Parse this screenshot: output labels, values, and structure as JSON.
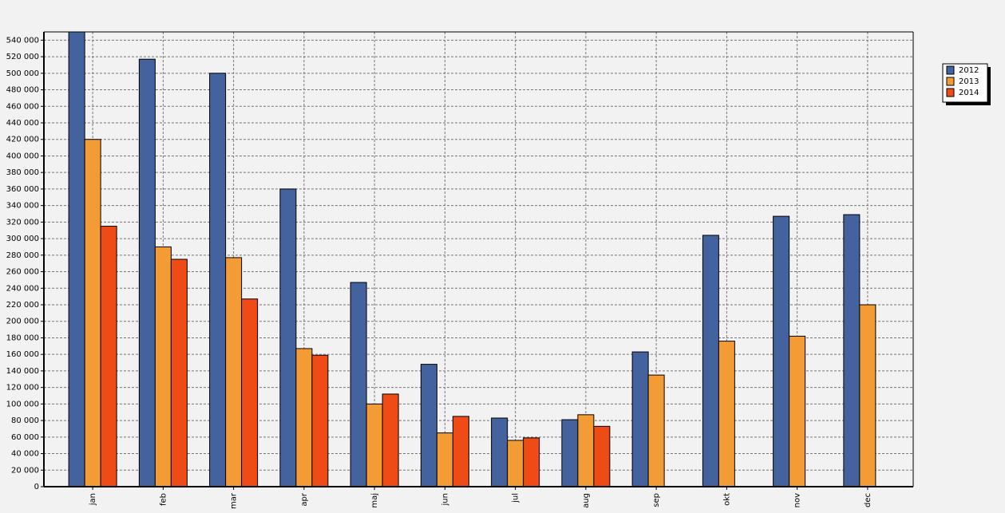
{
  "chart_data": {
    "type": "bar",
    "categories": [
      "jan",
      "feb",
      "mar",
      "apr",
      "maj",
      "jun",
      "jul",
      "aug",
      "sep",
      "okt",
      "nov",
      "dec"
    ],
    "series": [
      {
        "name": "2012",
        "color": "#43629e",
        "values": [
          550000,
          517000,
          500000,
          360000,
          247000,
          148000,
          83000,
          81000,
          163000,
          304000,
          327000,
          329000
        ]
      },
      {
        "name": "2013",
        "color": "#f39c35",
        "values": [
          420000,
          290000,
          277000,
          167000,
          100000,
          65000,
          56000,
          87000,
          135000,
          176000,
          182000,
          220000
        ]
      },
      {
        "name": "2014",
        "color": "#ef4b17",
        "values": [
          315000,
          275000,
          227000,
          159000,
          112000,
          85000,
          59000,
          73000,
          null,
          null,
          null,
          null
        ]
      }
    ],
    "ylim": [
      0,
      550000
    ],
    "yticks": [
      0,
      {
        "value": 20000,
        "label": "20 000"
      },
      {
        "value": 40000,
        "label": "40 000"
      },
      {
        "value": 60000,
        "label": "60 000"
      },
      {
        "value": 80000,
        "label": "80 000"
      },
      {
        "value": 100000,
        "label": "100 000"
      },
      {
        "value": 120000,
        "label": "120 000"
      },
      {
        "value": 140000,
        "label": "140 000"
      },
      {
        "value": 160000,
        "label": "160 000"
      },
      {
        "value": 180000,
        "label": "180 000"
      },
      {
        "value": 200000,
        "label": "200 000"
      },
      {
        "value": 220000,
        "label": "220 000"
      },
      {
        "value": 240000,
        "label": "240 000"
      },
      {
        "value": 260000,
        "label": "260 000"
      },
      {
        "value": 280000,
        "label": "280 000"
      },
      {
        "value": 300000,
        "label": "300 000"
      },
      {
        "value": 320000,
        "label": "320 000"
      },
      {
        "value": 340000,
        "label": "340 000"
      },
      {
        "value": 360000,
        "label": "360 000"
      },
      {
        "value": 380000,
        "label": "380 000"
      },
      {
        "value": 400000,
        "label": "400 000"
      },
      {
        "value": 420000,
        "label": "420 000"
      },
      {
        "value": 440000,
        "label": "440 000"
      },
      {
        "value": 460000,
        "label": "460 000"
      },
      {
        "value": 480000,
        "label": "480 000"
      },
      {
        "value": 500000,
        "label": "500 000"
      },
      {
        "value": 520000,
        "label": "520 000"
      },
      {
        "value": 540000,
        "label": "540 000"
      }
    ],
    "grid": true,
    "legend": "top-right"
  }
}
